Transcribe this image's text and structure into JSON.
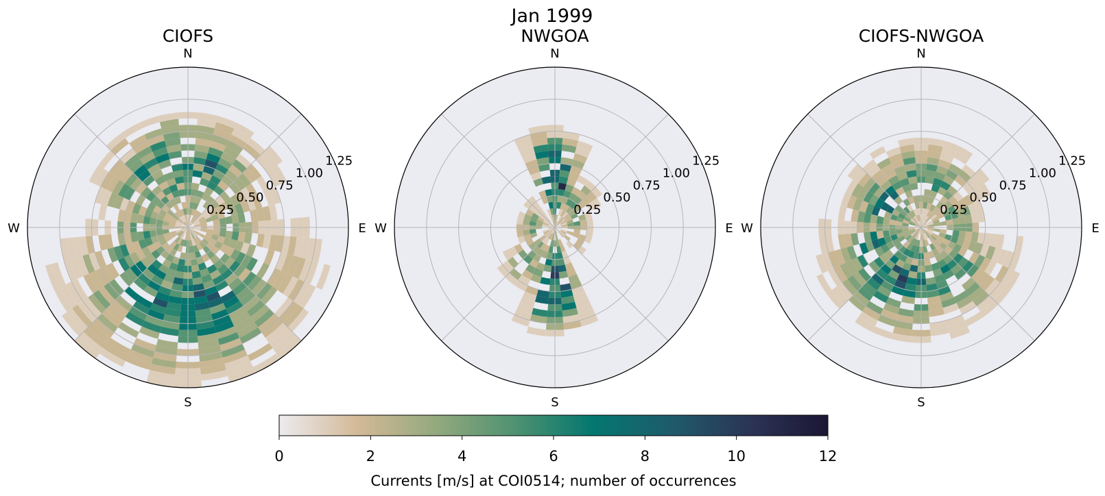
{
  "figure": {
    "suptitle": "Jan 1999"
  },
  "chart_data": [
    {
      "type": "heatmap",
      "subtype": "polar-rose",
      "title": "CIOFS",
      "direction_labels": [
        "N",
        "E",
        "S",
        "W"
      ],
      "radial_ticks": [
        "0.25",
        "0.50",
        "0.75",
        "1.00",
        "1.25"
      ],
      "rlim": [
        0,
        1.25
      ],
      "n_direction_bins": 36,
      "speed_bin_width": 0.05,
      "grid": true,
      "lobes": [
        {
          "dir_deg": 0,
          "spread_deg": 70,
          "rmax": 0.92,
          "peak_r": 0.5,
          "peak_count": 7
        },
        {
          "dir_deg": 320,
          "spread_deg": 40,
          "rmax": 0.8,
          "peak_r": 0.55,
          "peak_count": 6
        },
        {
          "dir_deg": 180,
          "spread_deg": 80,
          "rmax": 1.25,
          "peak_r": 0.6,
          "peak_count": 8
        },
        {
          "dir_deg": 135,
          "spread_deg": 50,
          "rmax": 1.1,
          "peak_r": 0.55,
          "peak_count": 5
        },
        {
          "dir_deg": 225,
          "spread_deg": 50,
          "rmax": 1.05,
          "peak_r": 0.5,
          "peak_count": 6
        },
        {
          "dir_deg": 90,
          "spread_deg": 60,
          "rmax": 0.75,
          "peak_r": 0.35,
          "peak_count": 4
        },
        {
          "dir_deg": 270,
          "spread_deg": 60,
          "rmax": 0.72,
          "peak_r": 0.35,
          "peak_count": 5
        }
      ],
      "seed": 11
    },
    {
      "type": "heatmap",
      "subtype": "polar-rose",
      "title": "NWGOA",
      "direction_labels": [
        "N",
        "E",
        "S",
        "W"
      ],
      "radial_ticks": [
        "0.25",
        "0.50",
        "0.75",
        "1.00",
        "1.25"
      ],
      "rlim": [
        0,
        1.25
      ],
      "n_direction_bins": 36,
      "speed_bin_width": 0.05,
      "grid": true,
      "lobes": [
        {
          "dir_deg": 0,
          "spread_deg": 24,
          "rmax": 0.78,
          "peak_r": 0.38,
          "peak_count": 12
        },
        {
          "dir_deg": 180,
          "spread_deg": 24,
          "rmax": 0.85,
          "peak_r": 0.45,
          "peak_count": 11
        },
        {
          "dir_deg": 30,
          "spread_deg": 40,
          "rmax": 0.45,
          "peak_r": 0.25,
          "peak_count": 5
        },
        {
          "dir_deg": 210,
          "spread_deg": 40,
          "rmax": 0.55,
          "peak_r": 0.3,
          "peak_count": 5
        },
        {
          "dir_deg": 90,
          "spread_deg": 60,
          "rmax": 0.3,
          "peak_r": 0.15,
          "peak_count": 4
        },
        {
          "dir_deg": 270,
          "spread_deg": 60,
          "rmax": 0.3,
          "peak_r": 0.15,
          "peak_count": 4
        }
      ],
      "seed": 23
    },
    {
      "type": "heatmap",
      "subtype": "polar-rose",
      "title": "CIOFS-NWGOA",
      "direction_labels": [
        "N",
        "E",
        "S",
        "W"
      ],
      "radial_ticks": [
        "0.25",
        "0.50",
        "0.75",
        "1.00",
        "1.25"
      ],
      "rlim": [
        0,
        1.25
      ],
      "n_direction_bins": 36,
      "speed_bin_width": 0.05,
      "grid": true,
      "lobes": [
        {
          "dir_deg": 0,
          "spread_deg": 70,
          "rmax": 0.7,
          "peak_r": 0.35,
          "peak_count": 6
        },
        {
          "dir_deg": 300,
          "spread_deg": 60,
          "rmax": 0.65,
          "peak_r": 0.3,
          "peak_count": 7
        },
        {
          "dir_deg": 200,
          "spread_deg": 60,
          "rmax": 0.9,
          "peak_r": 0.45,
          "peak_count": 8
        },
        {
          "dir_deg": 150,
          "spread_deg": 60,
          "rmax": 0.85,
          "peak_r": 0.4,
          "peak_count": 6
        },
        {
          "dir_deg": 240,
          "spread_deg": 40,
          "rmax": 0.8,
          "peak_r": 0.35,
          "peak_count": 7
        },
        {
          "dir_deg": 90,
          "spread_deg": 60,
          "rmax": 0.5,
          "peak_r": 0.25,
          "peak_count": 5
        }
      ],
      "seed": 37
    }
  ],
  "colorbar": {
    "label": "Currents [m/s] at COI0514; number of occurrences",
    "min": 0,
    "max": 12,
    "ticks": [
      "0",
      "2",
      "4",
      "6",
      "8",
      "10",
      "12"
    ],
    "colormap_stops": [
      "#ecebef",
      "#d3b997",
      "#94a97e",
      "#4f9271",
      "#04776f",
      "#1f5b6b",
      "#2b3456",
      "#1c1633"
    ],
    "background_color": "#ebebf2"
  }
}
